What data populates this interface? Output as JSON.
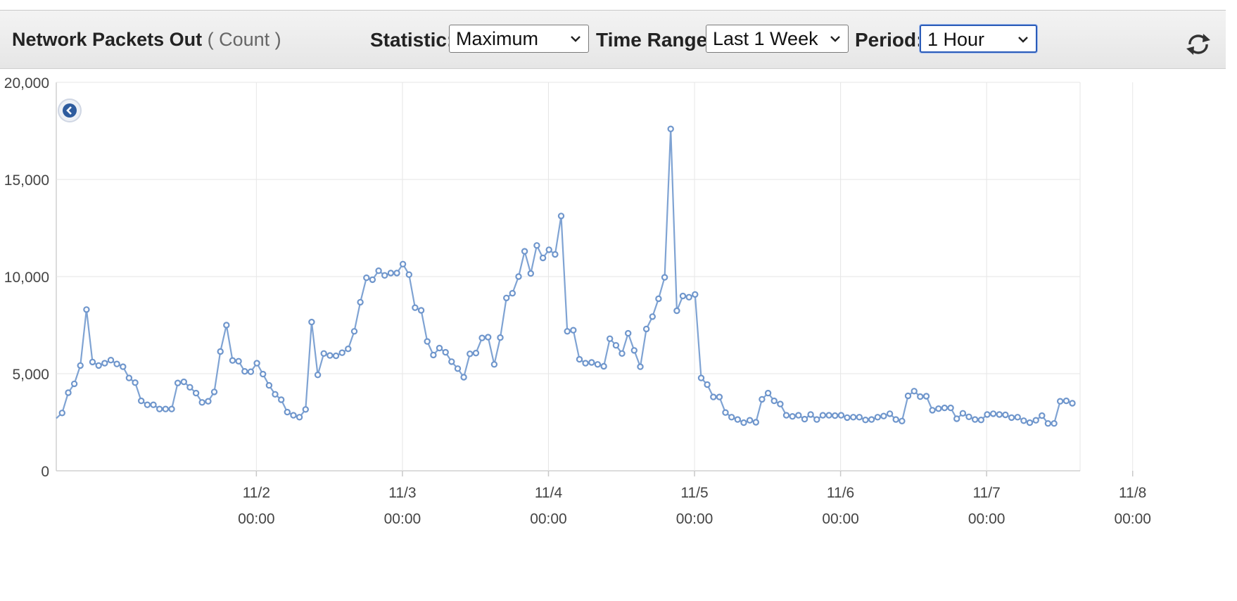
{
  "header": {
    "title": "Network Packets Out",
    "unit": "( Count )",
    "statistic_label": "Statistic:",
    "statistic_value": "Maximum",
    "time_range_label": "Time Range:",
    "time_range_value": "Last 1 Week",
    "period_label": "Period:",
    "period_value": "1 Hour"
  },
  "colors": {
    "series": "#7fa3d3",
    "marker_fill": "#ffffff",
    "marker_stroke": "#6f96cc",
    "grid": "#e6e6e6"
  },
  "icons": {
    "refresh": "refresh-icon",
    "back": "back-arrow-icon"
  },
  "chart_data": {
    "type": "line",
    "grid": true,
    "ylim": [
      0,
      20000
    ],
    "yticks": [
      0,
      5000,
      10000,
      15000,
      20000
    ],
    "ytick_labels": [
      "0",
      "5,000",
      "10,000",
      "15,000",
      "20,000"
    ],
    "xlim": [
      -13.7,
      56.4
    ],
    "xticks": [
      {
        "x": 0,
        "label": "11/2",
        "sublabel": "00:00"
      },
      {
        "x": 10,
        "label": "11/3",
        "sublabel": "00:00"
      },
      {
        "x": 20,
        "label": "11/4",
        "sublabel": "00:00"
      },
      {
        "x": 30,
        "label": "11/5",
        "sublabel": "00:00"
      },
      {
        "x": 40,
        "label": "11/6",
        "sublabel": "00:00"
      },
      {
        "x": 50,
        "label": "11/7",
        "sublabel": "00:00"
      },
      {
        "x": 60,
        "label": "11/8",
        "sublabel": "00:00"
      }
    ],
    "series": [
      {
        "start_x": -13.3,
        "step": 0.4167,
        "values": [
          2980,
          4020,
          4480,
          5420,
          8300,
          5600,
          5420,
          5540,
          5700,
          5500,
          5360,
          4780,
          4540,
          3600,
          3400,
          3400,
          3180,
          3180,
          3180,
          4520,
          4580,
          4300,
          4000,
          3520,
          3580,
          4060,
          6140,
          7500,
          5680,
          5640,
          5120,
          5100,
          5540,
          4980,
          4400,
          3940,
          3660,
          3020,
          2860,
          2760,
          3160,
          7660,
          4940,
          6040,
          5940,
          5920,
          6080,
          6280,
          7180,
          8680,
          9940,
          9840,
          10300,
          10060,
          10180,
          10180,
          10640,
          10100,
          8400,
          8260,
          6660,
          5960,
          6320,
          6100,
          5620,
          5260,
          4820,
          6020,
          6060,
          6840,
          6880,
          5480,
          6860,
          8900,
          9140,
          10000,
          11300,
          10160,
          11600,
          10960,
          11380,
          11140,
          13120,
          7180,
          7240,
          5740,
          5540,
          5580,
          5480,
          5380,
          6800,
          6460,
          6040,
          7080,
          6200,
          5360,
          7300,
          7940,
          8860,
          9960,
          17600,
          8240,
          9000,
          8940,
          9080,
          4780,
          4440,
          3800,
          3800,
          3000,
          2760,
          2640,
          2480,
          2600,
          2500,
          3680,
          4000,
          3600,
          3440,
          2860,
          2800,
          2860,
          2660,
          2900,
          2640,
          2860,
          2860,
          2840,
          2860,
          2740,
          2760,
          2760,
          2620,
          2640,
          2760,
          2820,
          2940,
          2640,
          2560,
          3860,
          4100,
          3820,
          3840,
          3120,
          3200,
          3240,
          3240,
          2680,
          2960,
          2780,
          2640,
          2620,
          2900,
          2940,
          2900,
          2880,
          2740,
          2760,
          2580,
          2480,
          2600,
          2840,
          2440,
          2440,
          3580,
          3600,
          3480
        ]
      }
    ]
  }
}
